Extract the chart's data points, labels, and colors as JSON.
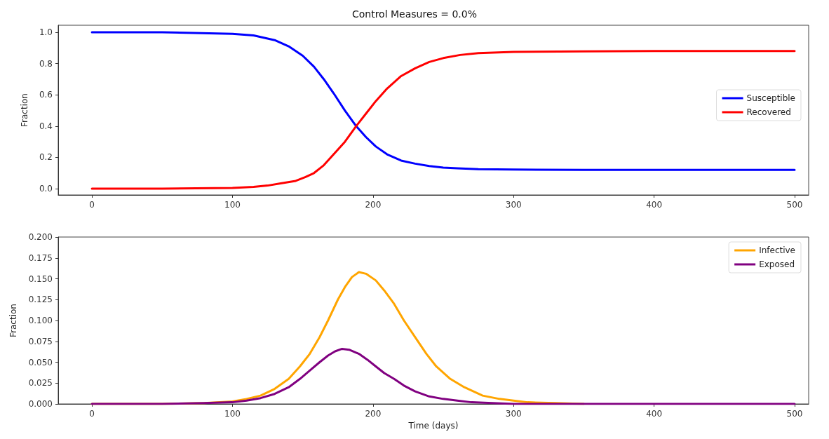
{
  "chart_data": [
    {
      "type": "line",
      "title": "Control Measures = 0.0%",
      "ylabel": "Fraction",
      "legend": "right",
      "grid": false,
      "marker": "none",
      "line_style": "solid",
      "xlim": [
        -24,
        510
      ],
      "xticks": [
        0,
        100,
        200,
        300,
        400,
        500
      ],
      "ylim": [
        -0.04,
        1.045
      ],
      "yticks": [
        {
          "value": 0,
          "label": "0.0"
        },
        {
          "value": 0.2,
          "label": "0.2"
        },
        {
          "value": 0.4,
          "label": "0.4"
        },
        {
          "value": 0.6,
          "label": "0.6"
        },
        {
          "value": 0.8,
          "label": "0.8"
        },
        {
          "value": 1,
          "label": "1.0"
        }
      ],
      "series": [
        {
          "name": "Susceptible",
          "color": "#0000ff",
          "x": [
            0,
            50,
            100,
            115,
            130,
            140,
            150,
            158,
            165,
            172,
            180,
            188,
            195,
            202,
            210,
            220,
            230,
            240,
            250,
            260,
            275,
            300,
            350,
            400,
            500
          ],
          "values": [
            1.0,
            1.0,
            0.99,
            0.98,
            0.95,
            0.91,
            0.85,
            0.78,
            0.7,
            0.61,
            0.5,
            0.4,
            0.33,
            0.27,
            0.22,
            0.18,
            0.16,
            0.145,
            0.135,
            0.13,
            0.125,
            0.122,
            0.12,
            0.12,
            0.12
          ]
        },
        {
          "name": "Recovered",
          "color": "#ff0000",
          "x": [
            0,
            50,
            100,
            115,
            125,
            135,
            145,
            152,
            158,
            165,
            172,
            180,
            188,
            195,
            202,
            210,
            220,
            230,
            240,
            250,
            262,
            275,
            300,
            350,
            400,
            500
          ],
          "values": [
            0.0,
            0.0,
            0.005,
            0.012,
            0.02,
            0.035,
            0.05,
            0.075,
            0.1,
            0.15,
            0.22,
            0.3,
            0.4,
            0.48,
            0.56,
            0.64,
            0.72,
            0.77,
            0.81,
            0.835,
            0.855,
            0.867,
            0.875,
            0.878,
            0.88,
            0.88
          ]
        }
      ]
    },
    {
      "type": "line",
      "xlabel": "Time (days)",
      "ylabel": "Fraction",
      "legend": "top right",
      "grid": false,
      "marker": "none",
      "line_style": "solid",
      "xlim": [
        -24,
        510
      ],
      "xticks": [
        0,
        100,
        200,
        300,
        400,
        500
      ],
      "ylim": [
        0,
        0.2
      ],
      "yticks": [
        {
          "value": 0,
          "label": "0.000"
        },
        0.025,
        {
          "value": 0.05,
          "label": "0.050"
        },
        0.075,
        {
          "value": 0.1,
          "label": "0.100"
        },
        0.125,
        {
          "value": 0.15,
          "label": "0.150"
        },
        0.175,
        {
          "value": 0.2,
          "label": "0.200"
        }
      ],
      "series": [
        {
          "name": "Infective",
          "color": "#ffa500",
          "x": [
            0,
            50,
            80,
            100,
            110,
            120,
            130,
            140,
            148,
            155,
            162,
            168,
            175,
            180,
            185,
            190,
            195,
            202,
            208,
            215,
            222,
            230,
            238,
            245,
            255,
            265,
            278,
            290,
            300,
            310,
            330,
            350
          ],
          "values": [
            0.0,
            0.0,
            0.001,
            0.003,
            0.006,
            0.01,
            0.018,
            0.03,
            0.045,
            0.06,
            0.08,
            0.1,
            0.125,
            0.14,
            0.152,
            0.158,
            0.156,
            0.148,
            0.136,
            0.12,
            0.1,
            0.08,
            0.06,
            0.045,
            0.03,
            0.02,
            0.01,
            0.006,
            0.004,
            0.002,
            0.001,
            0.0
          ]
        },
        {
          "name": "Exposed",
          "color": "#800080",
          "x": [
            0,
            50,
            80,
            100,
            110,
            120,
            130,
            140,
            148,
            155,
            162,
            168,
            173,
            178,
            183,
            190,
            196,
            202,
            208,
            215,
            222,
            230,
            240,
            250,
            260,
            270,
            285,
            300,
            350,
            400,
            500
          ],
          "values": [
            0.0,
            0.0,
            0.001,
            0.002,
            0.004,
            0.007,
            0.012,
            0.02,
            0.03,
            0.04,
            0.05,
            0.058,
            0.063,
            0.066,
            0.065,
            0.06,
            0.053,
            0.045,
            0.037,
            0.03,
            0.022,
            0.015,
            0.009,
            0.006,
            0.004,
            0.002,
            0.001,
            0.0,
            0.0,
            0.0,
            0.0
          ]
        }
      ]
    }
  ]
}
